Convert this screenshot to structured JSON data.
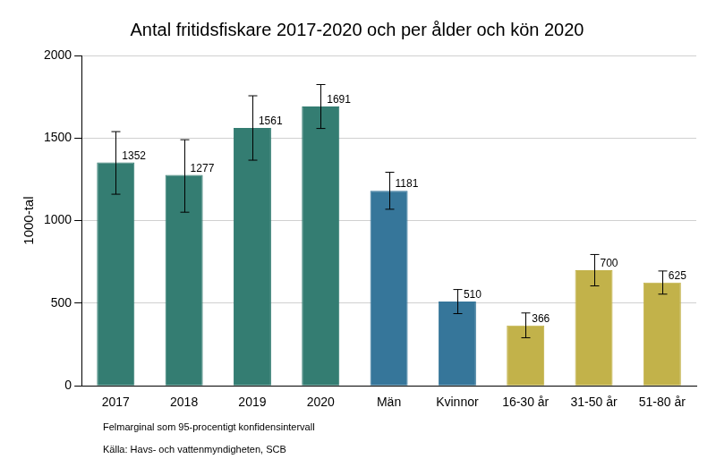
{
  "chart_data": {
    "type": "bar",
    "title": "Antal fritidsfiskare 2017-2020 och per ålder och kön 2020",
    "y_label": "1000-tal",
    "categories": [
      "2017",
      "2018",
      "2019",
      "2020",
      "Män",
      "Kvinnor",
      "16-30 år",
      "31-50 år",
      "51-80 år"
    ],
    "values": [
      1352,
      1277,
      1561,
      1691,
      1181,
      510,
      366,
      700,
      625
    ],
    "error_lower": [
      1160,
      1051,
      1366,
      1558,
      1069,
      437,
      291,
      605,
      555
    ],
    "error_upper": [
      1539,
      1490,
      1756,
      1824,
      1293,
      583,
      441,
      795,
      695
    ],
    "colors": [
      "#347d72",
      "#347d72",
      "#347d72",
      "#347d72",
      "#36769a",
      "#36769a",
      "#c2b24a",
      "#c2b24a",
      "#c2b24a"
    ],
    "ylim": [
      0,
      2000
    ],
    "yticks": [
      0,
      500,
      1000,
      1500,
      2000
    ],
    "grid": true,
    "data_labels": true,
    "footnotes": [
      "Felmarginal som 95-procentigt konfidensintervall",
      "Källa: Havs- och vattenmyndigheten, SCB"
    ]
  }
}
